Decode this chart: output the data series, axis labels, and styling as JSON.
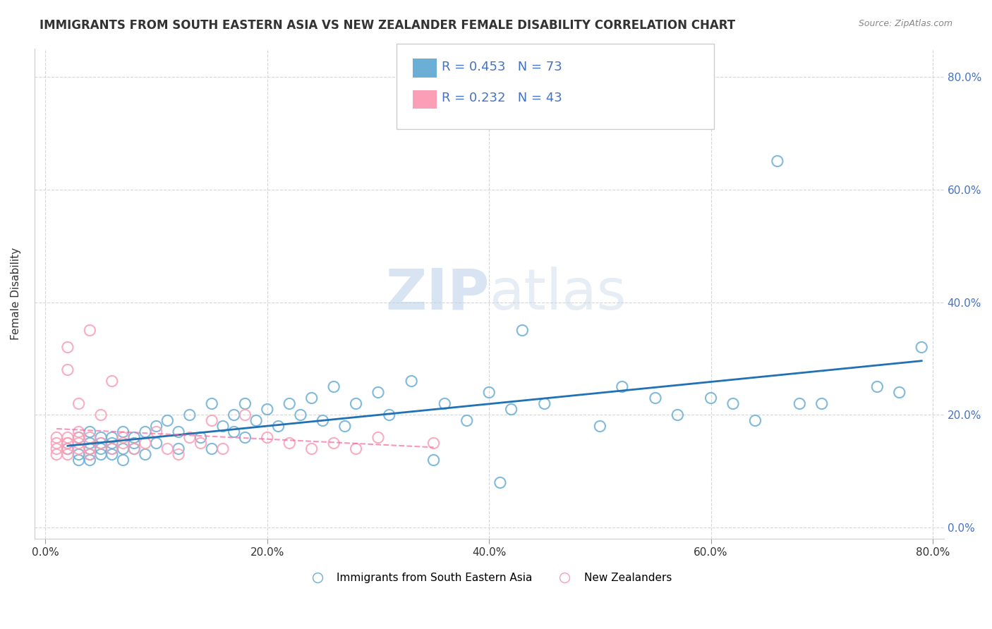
{
  "title": "IMMIGRANTS FROM SOUTH EASTERN ASIA VS NEW ZEALANDER FEMALE DISABILITY CORRELATION CHART",
  "source": "Source: ZipAtlas.com",
  "ylabel": "Female Disability",
  "xlabel": "",
  "R_blue": 0.453,
  "N_blue": 73,
  "R_pink": 0.232,
  "N_pink": 43,
  "blue_color": "#6baed6",
  "pink_color": "#fa9fb5",
  "blue_line_color": "#2171b5",
  "pink_line_color": "#f768a1",
  "watermark_zip": "ZIP",
  "watermark_atlas": "atlas",
  "xlim": [
    0.0,
    0.8
  ],
  "ylim": [
    -0.02,
    0.85
  ],
  "xticks": [
    0.0,
    0.2,
    0.4,
    0.6,
    0.8
  ],
  "yticks_right": [
    0.0,
    0.2,
    0.4,
    0.6,
    0.8
  ],
  "blue_x": [
    0.02,
    0.03,
    0.03,
    0.03,
    0.04,
    0.04,
    0.04,
    0.04,
    0.04,
    0.05,
    0.05,
    0.05,
    0.05,
    0.06,
    0.06,
    0.06,
    0.06,
    0.07,
    0.07,
    0.07,
    0.08,
    0.08,
    0.08,
    0.09,
    0.09,
    0.1,
    0.1,
    0.11,
    0.12,
    0.12,
    0.13,
    0.14,
    0.15,
    0.15,
    0.16,
    0.17,
    0.17,
    0.18,
    0.18,
    0.19,
    0.2,
    0.21,
    0.22,
    0.23,
    0.24,
    0.25,
    0.26,
    0.27,
    0.28,
    0.3,
    0.31,
    0.33,
    0.35,
    0.36,
    0.38,
    0.4,
    0.41,
    0.42,
    0.43,
    0.45,
    0.5,
    0.52,
    0.55,
    0.57,
    0.6,
    0.62,
    0.64,
    0.66,
    0.68,
    0.7,
    0.75,
    0.77,
    0.79
  ],
  "blue_y": [
    0.14,
    0.16,
    0.12,
    0.13,
    0.15,
    0.17,
    0.13,
    0.14,
    0.12,
    0.16,
    0.14,
    0.13,
    0.15,
    0.16,
    0.15,
    0.14,
    0.13,
    0.17,
    0.14,
    0.12,
    0.15,
    0.16,
    0.14,
    0.17,
    0.13,
    0.18,
    0.15,
    0.19,
    0.17,
    0.14,
    0.2,
    0.16,
    0.22,
    0.14,
    0.18,
    0.2,
    0.17,
    0.22,
    0.16,
    0.19,
    0.21,
    0.18,
    0.22,
    0.2,
    0.23,
    0.19,
    0.25,
    0.18,
    0.22,
    0.24,
    0.2,
    0.26,
    0.12,
    0.22,
    0.19,
    0.24,
    0.08,
    0.21,
    0.35,
    0.22,
    0.18,
    0.25,
    0.23,
    0.2,
    0.23,
    0.22,
    0.19,
    0.65,
    0.22,
    0.22,
    0.25,
    0.24,
    0.32
  ],
  "pink_x": [
    0.01,
    0.01,
    0.01,
    0.01,
    0.02,
    0.02,
    0.02,
    0.02,
    0.02,
    0.02,
    0.02,
    0.03,
    0.03,
    0.03,
    0.03,
    0.03,
    0.04,
    0.04,
    0.04,
    0.04,
    0.05,
    0.05,
    0.06,
    0.06,
    0.07,
    0.07,
    0.08,
    0.09,
    0.1,
    0.11,
    0.12,
    0.13,
    0.14,
    0.15,
    0.16,
    0.18,
    0.2,
    0.22,
    0.24,
    0.26,
    0.28,
    0.3,
    0.35
  ],
  "pink_y": [
    0.14,
    0.16,
    0.15,
    0.13,
    0.15,
    0.32,
    0.28,
    0.14,
    0.13,
    0.16,
    0.15,
    0.14,
    0.22,
    0.17,
    0.15,
    0.16,
    0.35,
    0.14,
    0.13,
    0.16,
    0.2,
    0.15,
    0.26,
    0.14,
    0.16,
    0.15,
    0.14,
    0.15,
    0.17,
    0.14,
    0.13,
    0.16,
    0.15,
    0.19,
    0.14,
    0.2,
    0.16,
    0.15,
    0.14,
    0.15,
    0.14,
    0.16,
    0.15
  ],
  "legend_blue_label": "Immigrants from South Eastern Asia",
  "legend_pink_label": "New Zealanders"
}
